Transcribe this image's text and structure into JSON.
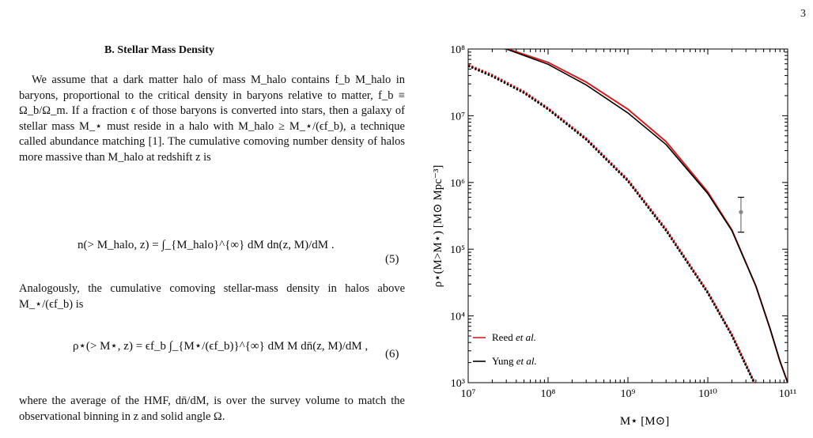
{
  "page_number": "3",
  "section_heading": "B.   Stellar Mass Density",
  "paragraphs": [
    "We assume that a dark matter halo of mass M_halo contains f_b M_halo in baryons, proportional to the critical density in baryons relative to matter, f_b ≡ Ω_b/Ω_m. If a fraction ϵ of those baryons is converted into stars, then a galaxy of stellar mass M_⋆ must reside in a halo with M_halo ≥ M_⋆/(ϵf_b), a technique called abundance matching [1]. The cumulative comoving number density of halos more massive than M_halo at redshift z is",
    "Analogously, the cumulative comoving stellar-mass density in halos above M_⋆/(ϵf_b) is",
    "where the average of the HMF, dn̄/dM, is over the survey volume to match the observational binning in z and solid angle Ω."
  ],
  "equations": [
    {
      "lhs": "n(> M_halo, z) = ∫_{M_halo}^{∞} dM dn(z, M)/dM .",
      "number": "(5)"
    },
    {
      "lhs": "ρ⋆(> M⋆, z) = ϵf_b ∫_{M⋆/(ϵf_b)}^{∞} dM M dn̄(z, M)/dM ,",
      "number": "(6)"
    }
  ],
  "chart_data": {
    "type": "line",
    "xlabel": "M⋆ [M⊙]",
    "ylabel": "ρ⋆(M>M⋆) [M⊙ Mpc⁻³]",
    "xscale": "log",
    "yscale": "log",
    "xlim": [
      10000000.0,
      100000000000.0
    ],
    "ylim": [
      1000.0,
      100000000.0
    ],
    "x_tick_labels": [
      "10⁷",
      "10⁸",
      "10⁹",
      "10¹⁰",
      "10¹¹"
    ],
    "y_tick_labels": [
      "10³",
      "10⁴",
      "10⁵",
      "10⁶",
      "10⁷",
      "10⁸"
    ],
    "legend_position": "bottom-left",
    "series": [
      {
        "name": "Reed et al.",
        "color": "#d62020",
        "style": "solid",
        "x": [
          10000000.0,
          30000000.0,
          100000000.0,
          300000000.0,
          1000000000.0,
          3000000000.0,
          10000000000.0,
          20000000000.0,
          40000000000.0,
          60000000000.0,
          80000000000.0,
          100000000000.0
        ],
        "y": [
          110000000.0,
          102000000.0,
          63000000.0,
          32000000.0,
          12500000.0,
          4100000.0,
          720000.0,
          195000.0,
          28000.0,
          6500.0,
          2100.0,
          1000.0
        ]
      },
      {
        "name": "Yung et al.",
        "color": "#000000",
        "style": "solid",
        "x": [
          10000000.0,
          30000000.0,
          100000000.0,
          300000000.0,
          1000000000.0,
          3000000000.0,
          10000000000.0,
          20000000000.0,
          40000000000.0,
          60000000000.0,
          80000000000.0,
          100000000000.0
        ],
        "y": [
          110000000.0,
          100000000.0,
          59000000.0,
          29000000.0,
          11000000.0,
          3700000.0,
          680000.0,
          190000.0,
          28000.0,
          6500.0,
          2100.0,
          1000.0
        ]
      },
      {
        "name": "",
        "color": "#d62020",
        "style": "dotted",
        "x": [
          10000000.0,
          20000000.0,
          50000000.0,
          100000000.0,
          300000000.0,
          1000000000.0,
          3000000000.0,
          10000000000.0,
          20000000000.0,
          30000000000.0,
          40000000000.0
        ],
        "y": [
          58000000.0,
          41000000.0,
          23000000.0,
          13000000.0,
          4600000.0,
          1100000.0,
          200000.0,
          23000.0,
          5300.0,
          1900.0,
          900.0
        ]
      },
      {
        "name": "",
        "color": "#000000",
        "style": "dotted",
        "x": [
          10000000.0,
          20000000.0,
          50000000.0,
          100000000.0,
          300000000.0,
          1000000000.0,
          3000000000.0,
          10000000000.0,
          20000000000.0,
          30000000000.0,
          40000000000.0
        ],
        "y": [
          56000000.0,
          39000000.0,
          22000000.0,
          12500000.0,
          4400000.0,
          1050000.0,
          190000.0,
          22000.0,
          5100.0,
          1800.0,
          880.0
        ]
      }
    ],
    "data_point": {
      "x": 26000000000.0,
      "y": 360000.0,
      "y_low": 180000.0,
      "y_high": 600000.0,
      "color": "#888888"
    }
  }
}
